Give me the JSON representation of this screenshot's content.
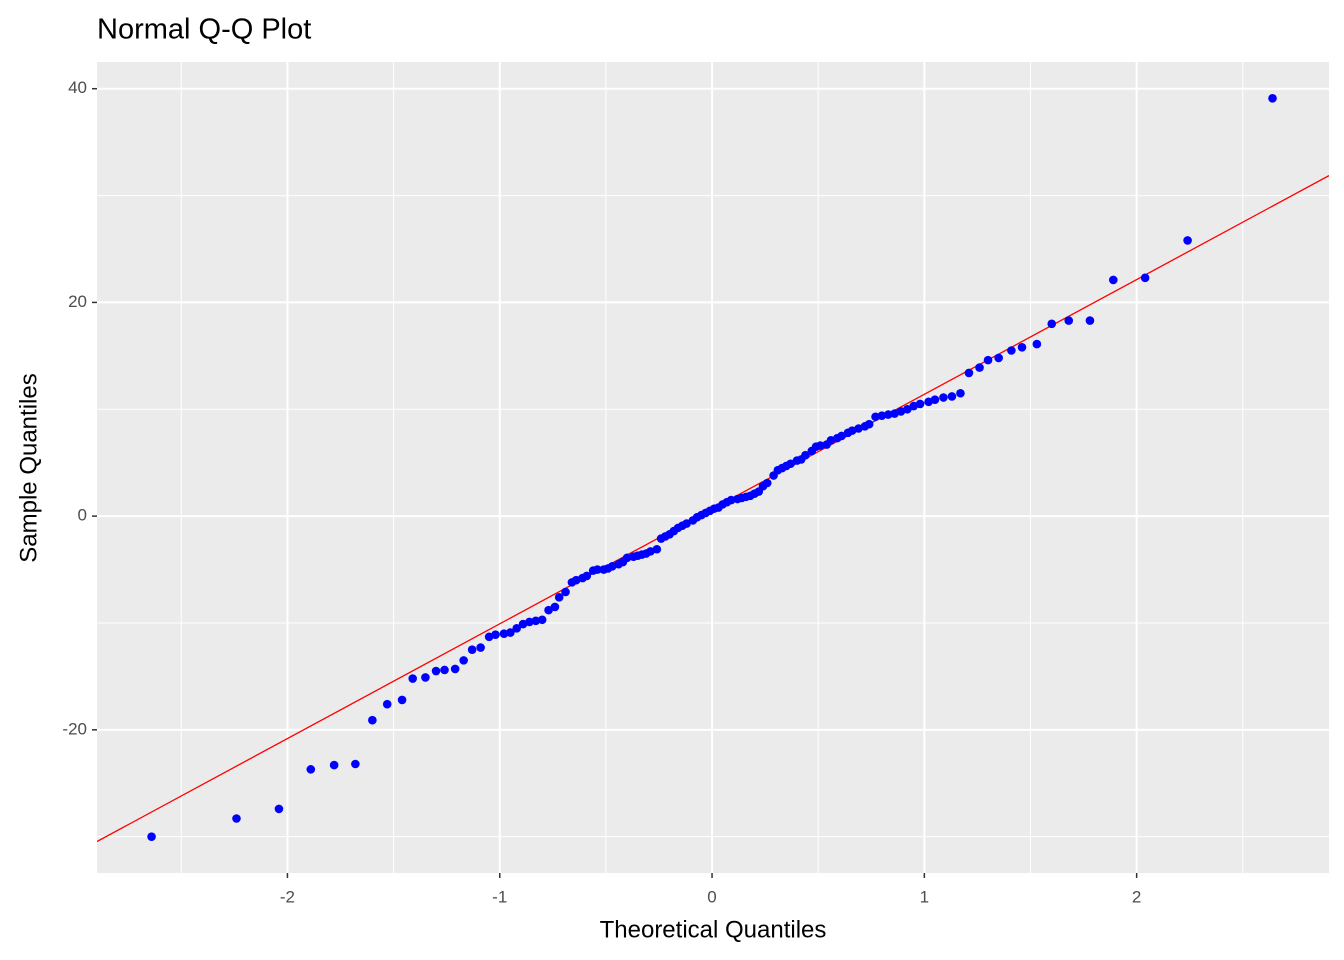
{
  "chart_data": {
    "type": "scatter",
    "title": "Normal Q-Q Plot",
    "x_label": "Theoretical Quantiles",
    "y_label": "Sample Quantiles",
    "color": "blue",
    "x": [
      -2.64,
      -2.24,
      -2.04,
      -1.89,
      -1.78,
      -1.68,
      -1.6,
      -1.53,
      -1.46,
      -1.41,
      -1.35,
      -1.3,
      -1.26,
      -1.21,
      -1.17,
      -1.13,
      -1.09,
      -1.05,
      -1.02,
      -0.98,
      -0.95,
      -0.92,
      -0.89,
      -0.86,
      -0.83,
      -0.8,
      -0.77,
      -0.74,
      -0.72,
      -0.69,
      -0.66,
      -0.64,
      -0.61,
      -0.59,
      -0.56,
      -0.54,
      -0.51,
      -0.49,
      -0.47,
      -0.44,
      -0.42,
      -0.4,
      -0.37,
      -0.35,
      -0.33,
      -0.31,
      -0.29,
      -0.26,
      -0.24,
      -0.22,
      -0.2,
      -0.18,
      -0.16,
      -0.14,
      -0.12,
      -0.09,
      -0.07,
      -0.05,
      -0.03,
      -0.01,
      0.01,
      0.03,
      0.05,
      0.07,
      0.09,
      0.12,
      0.14,
      0.16,
      0.18,
      0.2,
      0.22,
      0.24,
      0.26,
      0.29,
      0.31,
      0.33,
      0.35,
      0.37,
      0.4,
      0.42,
      0.44,
      0.47,
      0.49,
      0.51,
      0.54,
      0.56,
      0.59,
      0.61,
      0.64,
      0.66,
      0.69,
      0.72,
      0.74,
      0.77,
      0.8,
      0.83,
      0.86,
      0.89,
      0.92,
      0.95,
      0.98,
      1.02,
      1.05,
      1.09,
      1.13,
      1.17,
      1.21,
      1.26,
      1.3,
      1.35,
      1.41,
      1.46,
      1.53,
      1.6,
      1.68,
      1.78,
      1.89,
      2.04,
      2.24,
      2.64
    ],
    "values": [
      -30.0,
      -28.3,
      -27.4,
      -23.7,
      -23.3,
      -23.2,
      -19.1,
      -17.6,
      -17.2,
      -15.2,
      -15.1,
      -14.5,
      -14.4,
      -14.3,
      -13.5,
      -12.5,
      -12.3,
      -11.3,
      -11.1,
      -11.0,
      -10.9,
      -10.5,
      -10.1,
      -9.9,
      -9.8,
      -9.7,
      -8.8,
      -8.5,
      -7.6,
      -7.1,
      -6.2,
      -6.0,
      -5.8,
      -5.6,
      -5.1,
      -5.0,
      -5.0,
      -4.9,
      -4.7,
      -4.5,
      -4.3,
      -3.9,
      -3.8,
      -3.7,
      -3.6,
      -3.5,
      -3.3,
      -3.1,
      -2.1,
      -1.9,
      -1.7,
      -1.4,
      -1.1,
      -0.9,
      -0.7,
      -0.4,
      -0.1,
      0.1,
      0.3,
      0.5,
      0.7,
      0.8,
      1.1,
      1.3,
      1.5,
      1.6,
      1.7,
      1.8,
      1.9,
      2.1,
      2.3,
      2.8,
      3.1,
      3.8,
      4.3,
      4.5,
      4.7,
      4.9,
      5.2,
      5.3,
      5.7,
      6.1,
      6.5,
      6.6,
      6.7,
      7.1,
      7.3,
      7.5,
      7.8,
      8.0,
      8.2,
      8.4,
      8.6,
      9.3,
      9.4,
      9.5,
      9.6,
      9.8,
      10.0,
      10.3,
      10.5,
      10.7,
      10.9,
      11.1,
      11.2,
      11.5,
      13.4,
      13.9,
      14.6,
      14.8,
      15.5,
      15.8,
      16.1,
      18.0,
      18.3,
      18.3,
      22.1,
      22.3,
      25.8,
      39.1
    ],
    "reference_line": {
      "slope": 10.74,
      "intercept": 0.66,
      "color": "red"
    },
    "xlim": [
      -2.897,
      2.906
    ],
    "ylim": [
      -33.4,
      42.5
    ],
    "xticks": [
      -2,
      -1,
      0,
      1,
      2
    ],
    "yticks": [
      -20,
      0,
      20,
      40
    ],
    "x_minor_ticks": [
      -2.5,
      -1.5,
      -0.5,
      0.5,
      1.5,
      2.5
    ],
    "y_minor_ticks": [
      -30,
      -10,
      10,
      30
    ],
    "grid": true
  }
}
